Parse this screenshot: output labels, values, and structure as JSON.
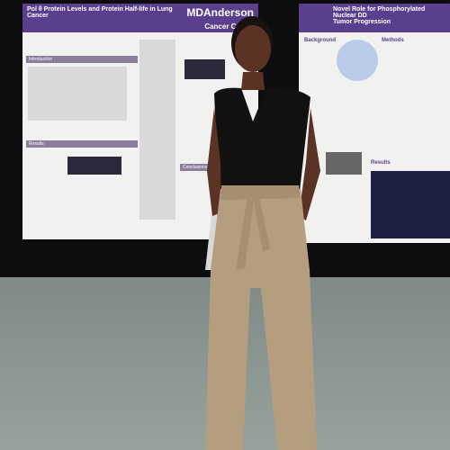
{
  "posters": [
    {
      "title": "Pol θ Protein Levels and Protein Half-life in Lung Cancer",
      "logo": "MDAnderson",
      "logo_sub": "Cancer Center",
      "sections": [
        "Introduction",
        "Results",
        "Conclusions"
      ]
    },
    {
      "title": "Novel Role for Phosphorylated Nuclear DD",
      "subtitle": "Tumor Progression",
      "sections": [
        "Background",
        "Methods",
        "Results"
      ]
    }
  ]
}
